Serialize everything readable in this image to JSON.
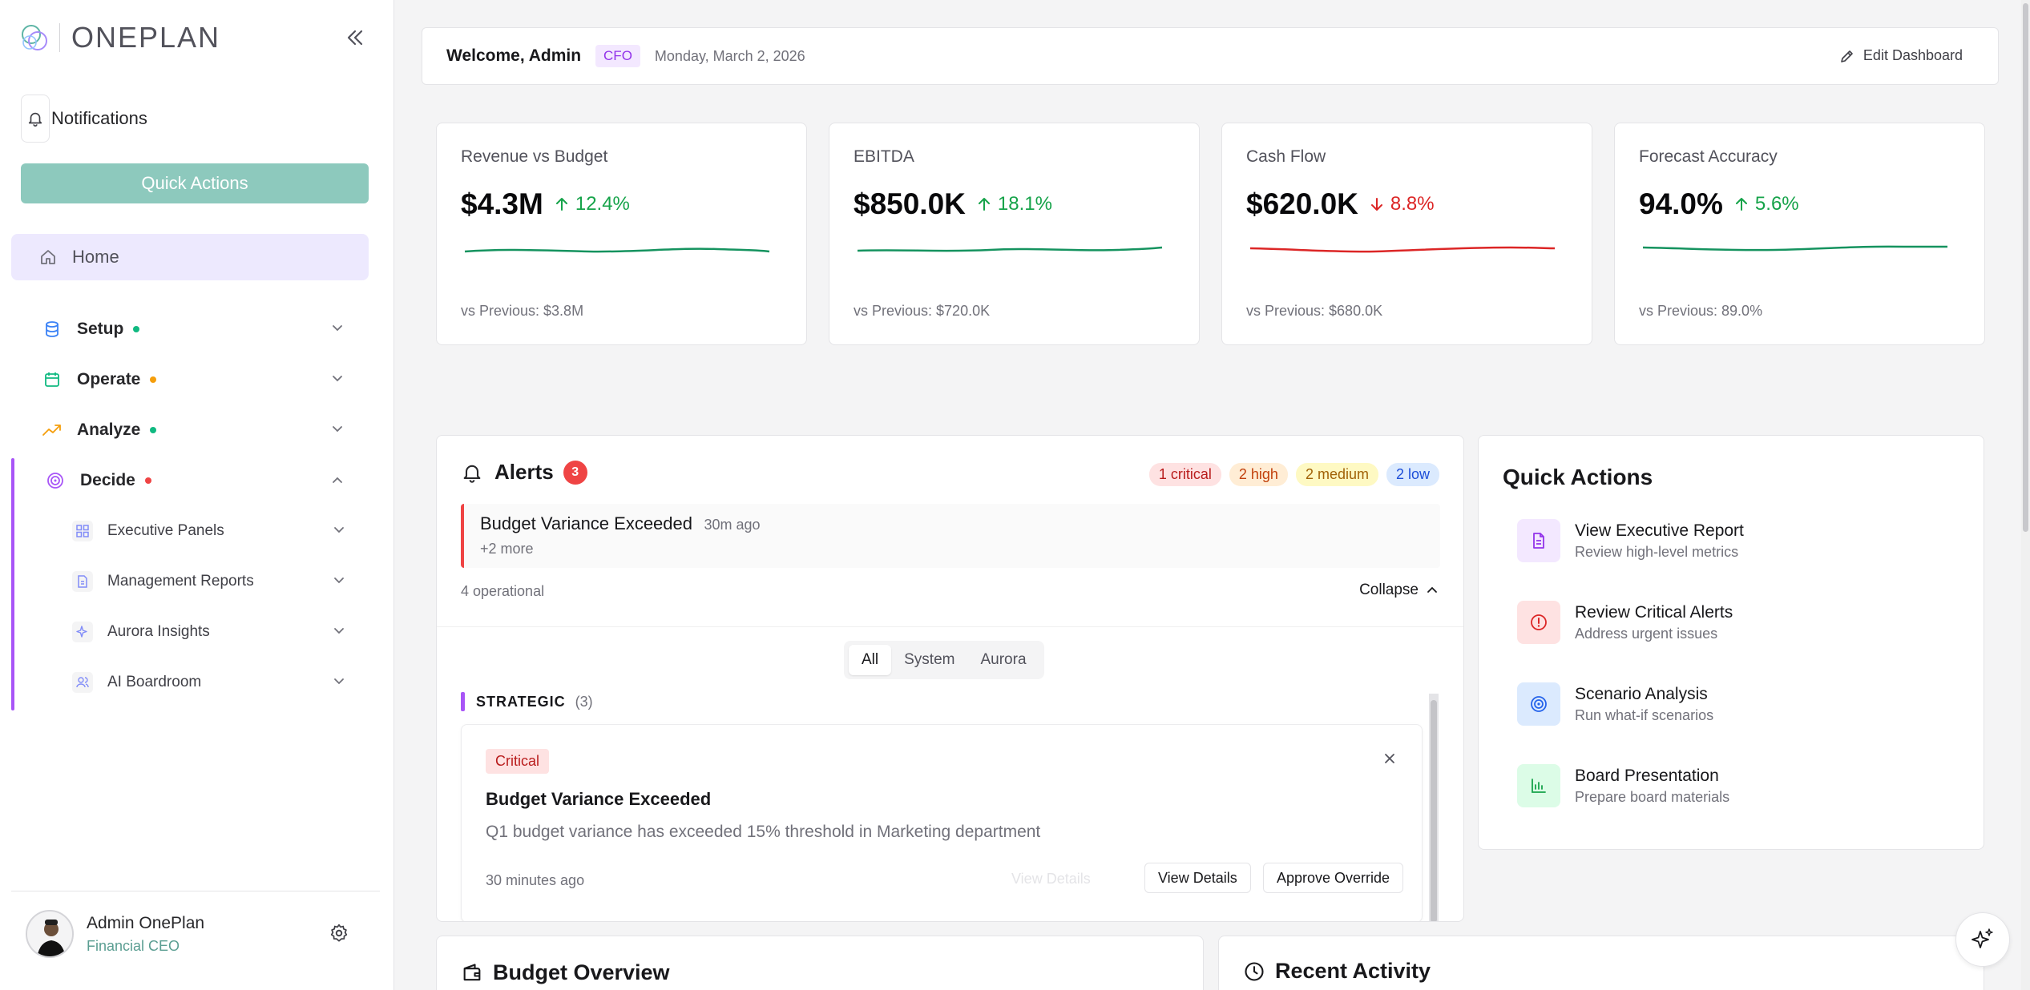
{
  "app": {
    "logo_text": "ONEPLAN"
  },
  "sidebar": {
    "notifications_label": "Notifications",
    "quick_actions_label": "Quick Actions",
    "home_label": "Home",
    "sections": [
      {
        "label": "Setup",
        "dot_color": "#10b981",
        "icon": "database-icon"
      },
      {
        "label": "Operate",
        "dot_color": "#f59e0b",
        "icon": "calendar-icon"
      },
      {
        "label": "Analyze",
        "dot_color": "#10b981",
        "icon": "trending-up-icon"
      },
      {
        "label": "Decide",
        "dot_color": "#ef4444",
        "icon": "target-icon"
      }
    ],
    "decide_items": [
      {
        "label": "Executive Panels",
        "icon": "grid-icon"
      },
      {
        "label": "Management Reports",
        "icon": "document-icon"
      },
      {
        "label": "Aurora Insights",
        "icon": "sparkles-icon"
      },
      {
        "label": "AI Boardroom",
        "icon": "users-icon"
      }
    ],
    "user": {
      "name": "Admin OnePlan",
      "role": "Financial CEO"
    }
  },
  "header": {
    "welcome": "Welcome, Admin",
    "role_badge": "CFO",
    "date": "Monday, March 2, 2026",
    "edit_label": "Edit Dashboard"
  },
  "kpis": [
    {
      "title": "Revenue vs Budget",
      "value": "$4.3M",
      "change": "12.4%",
      "direction": "up",
      "previous": "vs Previous: $3.8M",
      "color": "#16a34a"
    },
    {
      "title": "EBITDA",
      "value": "$850.0K",
      "change": "18.1%",
      "direction": "up",
      "previous": "vs Previous: $720.0K",
      "color": "#16a34a"
    },
    {
      "title": "Cash Flow",
      "value": "$620.0K",
      "change": "8.8%",
      "direction": "down",
      "previous": "vs Previous: $680.0K",
      "color": "#dc2626"
    },
    {
      "title": "Forecast Accuracy",
      "value": "94.0%",
      "change": "5.6%",
      "direction": "up",
      "previous": "vs Previous: 89.0%",
      "color": "#16a34a"
    }
  ],
  "alerts": {
    "title": "Alerts",
    "count": "3",
    "severity_badges": {
      "critical": "1 critical",
      "high": "2 high",
      "medium": "2 medium",
      "low": "2 low"
    },
    "top_alert": {
      "title": "Budget Variance Exceeded",
      "time": "30m ago",
      "more": "+2 more"
    },
    "operational": "4 operational",
    "collapse_label": "Collapse",
    "filters": [
      "All",
      "System",
      "Aurora"
    ],
    "active_filter": "All",
    "group": {
      "label": "STRATEGIC",
      "count": "(3)"
    },
    "card": {
      "severity": "Critical",
      "title": "Budget Variance Exceeded",
      "description": "Q1 budget variance has exceeded 15% threshold in Marketing department",
      "time": "30 minutes ago",
      "ghost_label": "View Details",
      "view_label": "View Details",
      "approve_label": "Approve Override"
    }
  },
  "quick_actions": {
    "title": "Quick Actions",
    "items": [
      {
        "label": "View Executive Report",
        "sub": "Review high-level metrics",
        "icon": "file-text-icon",
        "bg": "#f3e8ff",
        "color": "#9333ea"
      },
      {
        "label": "Review Critical Alerts",
        "sub": "Address urgent issues",
        "icon": "alert-circle-icon",
        "bg": "#fee2e2",
        "color": "#dc2626"
      },
      {
        "label": "Scenario Analysis",
        "sub": "Run what-if scenarios",
        "icon": "target-icon",
        "bg": "#dbeafe",
        "color": "#2563eb"
      },
      {
        "label": "Board Presentation",
        "sub": "Prepare board materials",
        "icon": "bar-chart-icon",
        "bg": "#dcfce7",
        "color": "#16a34a"
      }
    ]
  },
  "bottom": {
    "budget_title": "Budget Overview",
    "activity_title": "Recent Activity"
  }
}
